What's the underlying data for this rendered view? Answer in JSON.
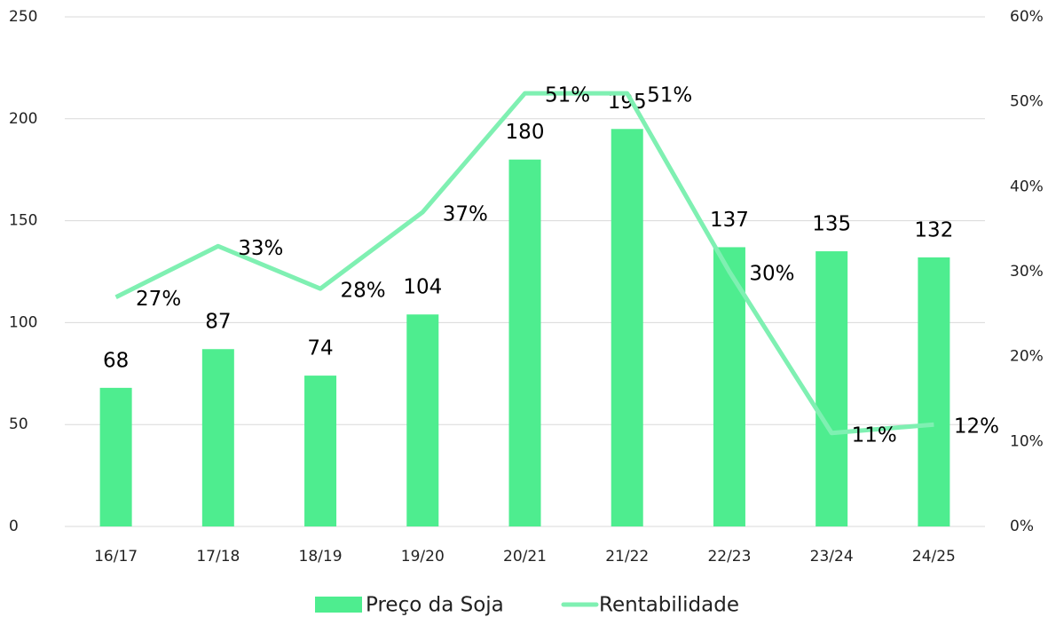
{
  "chart_data": {
    "type": "bar",
    "categories": [
      "16/17",
      "17/18",
      "18/19",
      "19/20",
      "20/21",
      "21/22",
      "22/23",
      "23/24",
      "24/25"
    ],
    "series": [
      {
        "name": "Preço da Soja",
        "type": "bar",
        "color": "#4eed8f",
        "values": [
          68,
          87,
          74,
          104,
          180,
          195,
          137,
          135,
          132
        ]
      },
      {
        "name": "Rentabilidade",
        "type": "line",
        "axis": "y2",
        "color": "#7ff0b2",
        "values": [
          27,
          33,
          28,
          37,
          51,
          51,
          30,
          11,
          12
        ],
        "value_labels": [
          "27%",
          "33%",
          "28%",
          "37%",
          "51%",
          "51%",
          "30%",
          "11%",
          "12%"
        ]
      }
    ],
    "ylim": [
      0,
      250
    ],
    "yticks": [
      0,
      50,
      100,
      150,
      200,
      250
    ],
    "y2lim": [
      0,
      60
    ],
    "y2ticks": [
      {
        "value": 0,
        "label": "0%"
      },
      {
        "value": 10,
        "label": "10%"
      },
      {
        "value": 20,
        "label": "20%"
      },
      {
        "value": 30,
        "label": "30%"
      },
      {
        "value": 40,
        "label": "40%"
      },
      {
        "value": 50,
        "label": "50%"
      },
      {
        "value": 60,
        "label": "60%"
      }
    ],
    "grid": true,
    "legend": "bottom"
  }
}
